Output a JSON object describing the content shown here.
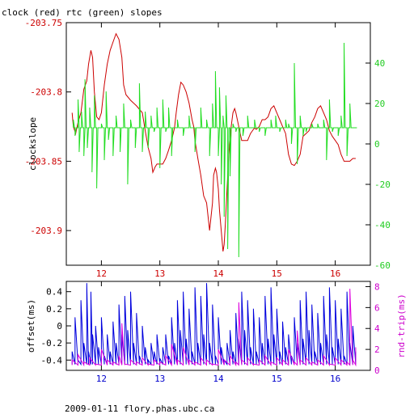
{
  "page": {
    "title": "clock (red) rtc (green) slopes",
    "footer": "2009-01-11 flory.phas.ubc.ca"
  },
  "colors": {
    "clock": "#cc0000",
    "rtc": "#22dd22",
    "offset": "#0000dd",
    "rndtrip": "#dd00dd",
    "frame": "#000000"
  },
  "chart_data": [
    {
      "type": "line",
      "title": "clock (red) rtc (green) slopes",
      "ylabel": "clockslope",
      "xlim": [
        11.4,
        16.6
      ],
      "ylim": [
        -203.925,
        -203.75
      ],
      "y2lim": [
        -60,
        60
      ],
      "x_ticks": [
        12,
        13,
        14,
        15,
        16
      ],
      "x_tick_labels": [
        "12",
        "13",
        "14",
        "15",
        "16"
      ],
      "y_ticks": [
        -203.75,
        -203.8,
        -203.85,
        -203.9
      ],
      "y_tick_labels": [
        "-203.75",
        "-203.8",
        "-203.85",
        "-203.9"
      ],
      "y2_ticks": [
        40,
        20,
        0,
        -20,
        -40,
        -60
      ],
      "y2_tick_labels": [
        "40",
        "20",
        "0",
        "-20",
        "-40",
        "-60"
      ],
      "series": [
        {
          "key": "clock",
          "axis": "left",
          "x": [
            11.5,
            11.52,
            11.56,
            11.6,
            11.65,
            11.7,
            11.75,
            11.78,
            11.82,
            11.85,
            11.88,
            11.92,
            11.96,
            12.0,
            12.05,
            12.1,
            12.15,
            12.2,
            12.25,
            12.3,
            12.35,
            12.38,
            12.42,
            12.5,
            12.6,
            12.7,
            12.75,
            12.8,
            12.85,
            12.88,
            12.92,
            12.95,
            13.0,
            13.05,
            13.1,
            13.15,
            13.2,
            13.25,
            13.28,
            13.32,
            13.36,
            13.4,
            13.45,
            13.5,
            13.55,
            13.58,
            13.6,
            13.65,
            13.7,
            13.75,
            13.8,
            13.85,
            13.9,
            13.92,
            13.95,
            13.97,
            14.0,
            14.02,
            14.05,
            14.08,
            14.1,
            14.12,
            14.15,
            14.18,
            14.22,
            14.25,
            14.28,
            14.3,
            14.35,
            14.4,
            14.45,
            14.5,
            14.55,
            14.6,
            14.62,
            14.65,
            14.7,
            14.75,
            14.8,
            14.85,
            14.9,
            14.95,
            15.0,
            15.05,
            15.1,
            15.15,
            15.2,
            15.25,
            15.3,
            15.35,
            15.4,
            15.45,
            15.5,
            15.55,
            15.6,
            15.65,
            15.7,
            15.75,
            15.8,
            15.85,
            15.9,
            15.95,
            16.0,
            16.05,
            16.1,
            16.15,
            16.2,
            16.25,
            16.3,
            16.35
          ],
          "y": [
            -203.815,
            -203.825,
            -203.83,
            -203.822,
            -203.815,
            -203.798,
            -203.792,
            -203.78,
            -203.77,
            -203.775,
            -203.8,
            -203.818,
            -203.82,
            -203.815,
            -203.795,
            -203.78,
            -203.77,
            -203.764,
            -203.758,
            -203.762,
            -203.775,
            -203.795,
            -203.802,
            -203.806,
            -203.81,
            -203.815,
            -203.828,
            -203.84,
            -203.848,
            -203.858,
            -203.854,
            -203.852,
            -203.852,
            -203.852,
            -203.848,
            -203.842,
            -203.835,
            -203.826,
            -203.815,
            -203.802,
            -203.793,
            -203.795,
            -203.8,
            -203.808,
            -203.82,
            -203.825,
            -203.835,
            -203.848,
            -203.86,
            -203.875,
            -203.88,
            -203.9,
            -203.88,
            -203.86,
            -203.855,
            -203.858,
            -203.87,
            -203.885,
            -203.9,
            -203.915,
            -203.91,
            -203.895,
            -203.87,
            -203.845,
            -203.825,
            -203.815,
            -203.812,
            -203.815,
            -203.825,
            -203.835,
            -203.835,
            -203.835,
            -203.83,
            -203.827,
            -203.826,
            -203.827,
            -203.825,
            -203.82,
            -203.82,
            -203.818,
            -203.812,
            -203.81,
            -203.815,
            -203.82,
            -203.825,
            -203.83,
            -203.845,
            -203.852,
            -203.853,
            -203.85,
            -203.845,
            -203.832,
            -203.83,
            -203.828,
            -203.822,
            -203.818,
            -203.812,
            -203.81,
            -203.815,
            -203.82,
            -203.828,
            -203.832,
            -203.835,
            -203.838,
            -203.845,
            -203.85,
            -203.85,
            -203.85,
            -203.848,
            -203.848
          ]
        },
        {
          "key": "rtc",
          "axis": "right",
          "baseline": 8,
          "x": [
            11.52,
            11.55,
            11.6,
            11.62,
            11.66,
            11.7,
            11.72,
            11.76,
            11.8,
            11.84,
            11.88,
            11.92,
            12.0,
            12.05,
            12.08,
            12.12,
            12.2,
            12.25,
            12.32,
            12.38,
            12.45,
            12.5,
            12.58,
            12.65,
            12.7,
            12.75,
            12.8,
            12.85,
            12.9,
            12.95,
            13.0,
            13.05,
            13.1,
            13.15,
            13.2,
            13.3,
            13.4,
            13.5,
            13.6,
            13.7,
            13.8,
            13.85,
            13.9,
            13.95,
            14.0,
            14.02,
            14.05,
            14.08,
            14.1,
            14.13,
            14.16,
            14.2,
            14.25,
            14.3,
            14.35,
            14.42,
            14.5,
            14.55,
            14.62,
            14.7,
            14.8,
            14.9,
            14.98,
            15.05,
            15.1,
            15.15,
            15.2,
            15.25,
            15.3,
            15.35,
            15.4,
            15.45,
            15.5,
            15.6,
            15.7,
            15.8,
            15.85,
            15.9,
            15.95,
            16.05,
            16.1,
            16.15,
            16.2,
            16.25,
            16.3,
            16.35
          ],
          "y": [
            12,
            4,
            22,
            -4,
            16,
            -6,
            32,
            -2,
            18,
            -14,
            24,
            -22,
            10,
            -8,
            26,
            2,
            -6,
            14,
            -4,
            20,
            -20,
            12,
            -2,
            30,
            -4,
            16,
            -2,
            14,
            6,
            18,
            -12,
            22,
            6,
            18,
            -6,
            12,
            4,
            14,
            -4,
            18,
            12,
            -6,
            20,
            36,
            -6,
            28,
            -20,
            14,
            -36,
            24,
            -52,
            -16,
            10,
            6,
            -56,
            4,
            14,
            8,
            12,
            6,
            4,
            12,
            14,
            6,
            8,
            12,
            10,
            0,
            40,
            -10,
            14,
            4,
            6,
            10,
            10,
            12,
            -8,
            22,
            6,
            4,
            14,
            50,
            -6,
            20,
            8,
            8
          ]
        }
      ]
    },
    {
      "type": "line",
      "ylabel": "offset(ms)",
      "y2label": "rnd-trip(ms)",
      "xlim": [
        11.4,
        16.6
      ],
      "ylim": [
        -0.52,
        0.52
      ],
      "y2lim": [
        0,
        8.5
      ],
      "x_ticks": [
        12,
        13,
        14,
        15,
        16
      ],
      "x_tick_labels": [
        "12",
        "13",
        "14",
        "15",
        "16"
      ],
      "y_ticks": [
        0.4,
        0.2,
        0,
        -0.2,
        -0.4
      ],
      "y_tick_labels": [
        "0.4",
        "0.2",
        "0",
        "-0.2",
        "-0.4"
      ],
      "y2_ticks": [
        8,
        6,
        4,
        2,
        0
      ],
      "y2_tick_labels": [
        "8",
        "6",
        "4",
        "2",
        "0"
      ],
      "series": [
        {
          "key": "offset",
          "axis": "left",
          "x": [
            11.5,
            11.55,
            11.6,
            11.65,
            11.7,
            11.75,
            11.78,
            11.82,
            11.85,
            11.9,
            11.95,
            12.0,
            12.05,
            12.1,
            12.15,
            12.2,
            12.25,
            12.3,
            12.35,
            12.4,
            12.45,
            12.5,
            12.55,
            12.6,
            12.65,
            12.7,
            12.75,
            12.8,
            12.85,
            12.9,
            12.95,
            13.0,
            13.05,
            13.1,
            13.15,
            13.2,
            13.25,
            13.3,
            13.35,
            13.4,
            13.45,
            13.5,
            13.55,
            13.6,
            13.65,
            13.7,
            13.75,
            13.8,
            13.85,
            13.9,
            13.95,
            14.0,
            14.05,
            14.1,
            14.15,
            14.2,
            14.25,
            14.3,
            14.35,
            14.4,
            14.45,
            14.5,
            14.55,
            14.6,
            14.65,
            14.7,
            14.75,
            14.8,
            14.85,
            14.9,
            14.95,
            15.0,
            15.05,
            15.1,
            15.15,
            15.2,
            15.25,
            15.3,
            15.35,
            15.4,
            15.45,
            15.5,
            15.55,
            15.6,
            15.65,
            15.7,
            15.75,
            15.8,
            15.85,
            15.9,
            15.95,
            16.0,
            16.05,
            16.1,
            16.15,
            16.2,
            16.25,
            16.3,
            16.35
          ],
          "y": [
            -0.3,
            0.1,
            -0.4,
            0.3,
            -0.2,
            0.5,
            -0.3,
            0.4,
            -0.1,
            0.0,
            -0.25,
            0.1,
            -0.35,
            -0.1,
            -0.3,
            0.05,
            -0.2,
            0.25,
            -0.1,
            0.35,
            -0.05,
            0.4,
            -0.2,
            0.15,
            -0.35,
            0.0,
            -0.25,
            -0.4,
            -0.2,
            -0.3,
            -0.1,
            -0.38,
            -0.25,
            -0.1,
            -0.35,
            0.1,
            -0.2,
            0.3,
            -0.05,
            0.4,
            -0.15,
            0.2,
            -0.3,
            0.45,
            -0.2,
            0.35,
            -0.1,
            0.5,
            -0.2,
            0.25,
            -0.35,
            0.1,
            -0.25,
            -0.4,
            -0.2,
            -0.05,
            -0.3,
            0.15,
            -0.15,
            0.4,
            -0.05,
            0.3,
            -0.25,
            0.2,
            -0.3,
            0.1,
            -0.2,
            0.35,
            -0.15,
            0.45,
            -0.1,
            0.2,
            -0.3,
            0.05,
            -0.25,
            -0.1,
            -0.35,
            0.1,
            -0.2,
            0.3,
            -0.15,
            0.4,
            -0.05,
            0.25,
            -0.3,
            0.15,
            -0.2,
            0.35,
            -0.1,
            0.45,
            -0.25,
            0.3,
            -0.15,
            0.2,
            -0.35,
            0.4,
            -0.2,
            0.0,
            -0.3
          ]
        },
        {
          "key": "rndtrip",
          "axis": "right",
          "x": [
            11.5,
            11.6,
            11.7,
            11.8,
            11.9,
            12.0,
            12.1,
            12.2,
            12.3,
            12.35,
            12.4,
            12.5,
            12.6,
            12.7,
            12.8,
            12.9,
            13.0,
            13.1,
            13.2,
            13.3,
            13.4,
            13.5,
            13.6,
            13.7,
            13.8,
            13.9,
            14.0,
            14.1,
            14.2,
            14.3,
            14.35,
            14.4,
            14.5,
            14.6,
            14.7,
            14.8,
            14.9,
            15.0,
            15.1,
            15.2,
            15.3,
            15.35,
            15.4,
            15.5,
            15.6,
            15.7,
            15.8,
            15.9,
            16.0,
            16.1,
            16.2,
            16.25,
            16.3,
            16.35
          ],
          "y": [
            1.0,
            1.5,
            0.8,
            1.2,
            0.6,
            2.0,
            1.0,
            0.8,
            1.4,
            4.5,
            0.6,
            1.0,
            0.8,
            1.2,
            0.6,
            1.0,
            0.8,
            1.4,
            2.5,
            1.0,
            2.2,
            1.0,
            0.8,
            1.2,
            1.0,
            0.6,
            2.0,
            1.0,
            1.4,
            0.8,
            6.5,
            1.0,
            1.2,
            0.6,
            1.0,
            1.4,
            0.8,
            1.2,
            1.0,
            2.0,
            0.8,
            3.8,
            1.0,
            1.2,
            0.8,
            1.0,
            1.4,
            0.6,
            1.2,
            1.0,
            0.8,
            7.8,
            1.0,
            2.2
          ]
        }
      ]
    }
  ]
}
